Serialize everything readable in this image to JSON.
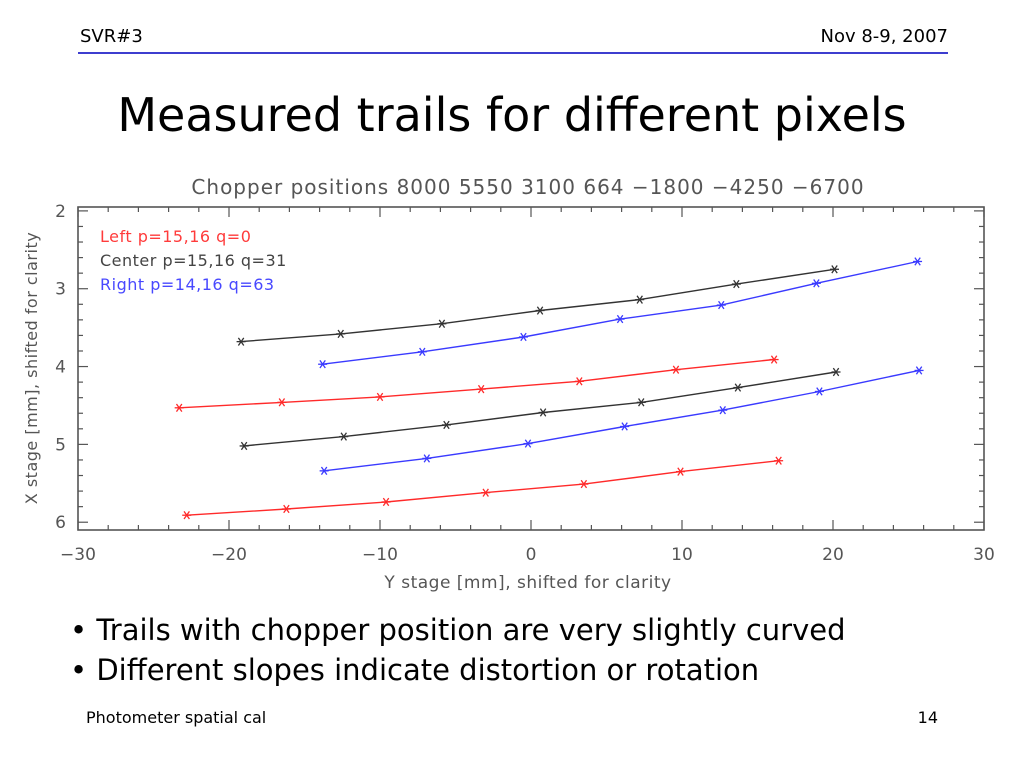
{
  "slide": {
    "header_left": "SVR#3",
    "header_right": "Nov 8-9, 2007",
    "title": "Measured trails for different pixels",
    "bullets": [
      "Trails with chopper position are very slightly curved",
      "Different slopes indicate distortion or rotation"
    ],
    "bullet_marker": "•",
    "footer_left": "Photometer spatial cal",
    "footer_right": "14"
  },
  "chart_data": {
    "type": "line",
    "title": "Chopper positions 8000 5550 3100 664 −1800 −4250 −6700",
    "xlabel": "Y stage [mm], shifted for clarity",
    "ylabel": "X stage [mm], shifted for clarity",
    "xlim": [
      -30,
      30
    ],
    "ylim": [
      6.1,
      1.95
    ],
    "y_inverted": true,
    "xticks": [
      -30,
      -20,
      -10,
      0,
      10,
      20,
      30
    ],
    "xtick_labels": [
      "−30",
      "−20",
      "−10",
      "0",
      "10",
      "20",
      "30"
    ],
    "yticks": [
      2,
      3,
      4,
      5,
      6
    ],
    "legend": [
      {
        "label": "Left p=15,16 q=0",
        "color": "#ff3b3b"
      },
      {
        "label": "Center p=15,16 q=31",
        "color": "#444444"
      },
      {
        "label": "Right p=14,16 q=63",
        "color": "#4848ff"
      }
    ],
    "legend_position": "top-left",
    "marker": "asterisk",
    "series": [
      {
        "group": "center",
        "color": "#333333",
        "x": [
          -19.2,
          -12.6,
          -5.9,
          0.6,
          7.2,
          13.6,
          20.1
        ],
        "y": [
          3.68,
          3.58,
          3.45,
          3.28,
          3.14,
          2.94,
          2.75
        ]
      },
      {
        "group": "right",
        "color": "#3a3aff",
        "x": [
          -13.8,
          -7.2,
          -0.5,
          5.9,
          12.6,
          18.9,
          25.6
        ],
        "y": [
          3.97,
          3.81,
          3.62,
          3.39,
          3.21,
          2.93,
          2.65
        ]
      },
      {
        "group": "left",
        "color": "#ff2a2a",
        "x": [
          -23.3,
          -16.5,
          -10.0,
          -3.3,
          3.2,
          9.6,
          16.1
        ],
        "y": [
          4.53,
          4.46,
          4.39,
          4.29,
          4.19,
          4.04,
          3.91
        ]
      },
      {
        "group": "center",
        "color": "#333333",
        "x": [
          -19.0,
          -12.4,
          -5.6,
          0.8,
          7.3,
          13.7,
          20.2
        ],
        "y": [
          5.02,
          4.9,
          4.75,
          4.59,
          4.46,
          4.27,
          4.07
        ]
      },
      {
        "group": "right",
        "color": "#3a3aff",
        "x": [
          -13.7,
          -6.9,
          -0.2,
          6.2,
          12.7,
          19.1,
          25.7
        ],
        "y": [
          5.34,
          5.18,
          4.99,
          4.77,
          4.56,
          4.32,
          4.05
        ]
      },
      {
        "group": "left",
        "color": "#ff2a2a",
        "x": [
          -22.8,
          -16.2,
          -9.6,
          -3.0,
          3.5,
          9.9,
          16.4
        ],
        "y": [
          5.91,
          5.83,
          5.74,
          5.62,
          5.51,
          5.35,
          5.21
        ]
      }
    ]
  }
}
